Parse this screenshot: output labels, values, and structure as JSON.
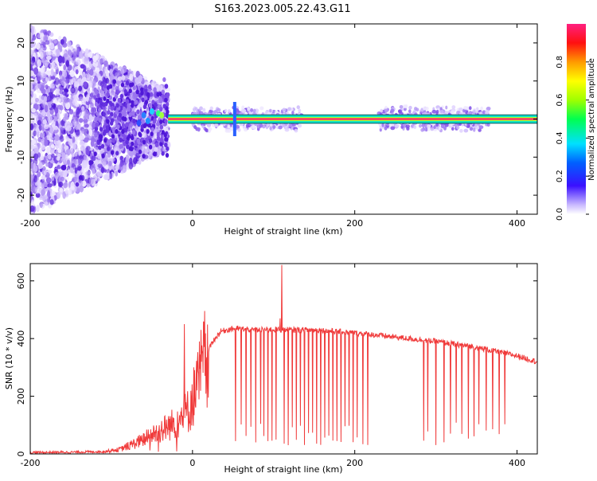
{
  "title": "S163.2023.005.22.43.G11",
  "colors": {
    "snr_line": "#f03a3a",
    "axis": "#000000",
    "carrier_core": "#ff2a6a",
    "carrier_edge": "#00e0d0",
    "scatter_low": "#d8c8f8",
    "scatter_high": "#5a18e0"
  },
  "chart_data": [
    {
      "type": "heatmap",
      "xlabel": "Height of straight line (km)",
      "ylabel": "Frequency (Hz)",
      "xlim": [
        -200,
        425
      ],
      "ylim": [
        -25,
        25
      ],
      "x_ticks": [
        {
          "value": -200,
          "label": "-200"
        },
        {
          "value": 0,
          "label": "0"
        },
        {
          "value": 200,
          "label": "200"
        },
        {
          "value": 400,
          "label": "400"
        }
      ],
      "y_ticks": [
        {
          "value": -20,
          "label": "-20"
        },
        {
          "value": -10,
          "label": "-10"
        },
        {
          "value": 0,
          "label": "0"
        },
        {
          "value": 10,
          "label": "10"
        },
        {
          "value": 20,
          "label": "20"
        }
      ],
      "colorbar": {
        "label": "Normalized spectral amplitude",
        "range": [
          0,
          1
        ],
        "ticks": [
          {
            "value": 0.0,
            "label": "0.0"
          },
          {
            "value": 0.2,
            "label": "0.2"
          },
          {
            "value": 0.4,
            "label": "0.4"
          },
          {
            "value": 0.6,
            "label": "0.6"
          },
          {
            "value": 0.8,
            "label": "0.8"
          }
        ]
      },
      "features": {
        "noise_region_x": [
          -200,
          -30
        ],
        "carrier_start_x": -30,
        "carrier_end_x": 425,
        "carrier_freq": 0,
        "carrier_halfwidth_hz": 1,
        "noisy_segments_x": [
          [
            0,
            135
          ],
          [
            230,
            365
          ]
        ],
        "spike_x": 52
      }
    },
    {
      "type": "line",
      "xlabel": "Height of straight line (km)",
      "ylabel": "SNR (10 * v/v)",
      "xlim": [
        -200,
        425
      ],
      "ylim": [
        0,
        660
      ],
      "x_ticks": [
        {
          "value": -200,
          "label": "-200"
        },
        {
          "value": 0,
          "label": "0"
        },
        {
          "value": 200,
          "label": "200"
        },
        {
          "value": 400,
          "label": "400"
        }
      ],
      "y_ticks": [
        {
          "value": 0,
          "label": "0"
        },
        {
          "value": 200,
          "label": "200"
        },
        {
          "value": 400,
          "label": "400"
        },
        {
          "value": 600,
          "label": "600"
        }
      ],
      "series": [
        {
          "x": [
            -200,
            -150,
            -110,
            -90,
            -60,
            -40,
            -20,
            -5,
            5,
            15,
            25,
            35,
            50,
            80,
            100,
            110,
            150,
            200,
            250,
            300,
            350,
            400,
            425
          ],
          "values": [
            5,
            6,
            8,
            15,
            50,
            80,
            110,
            150,
            230,
            330,
            390,
            425,
            435,
            430,
            432,
            430,
            430,
            420,
            405,
            390,
            370,
            340,
            320
          ]
        }
      ],
      "dropout_x": [
        53,
        60,
        66,
        72,
        78,
        84,
        88,
        93,
        98,
        103,
        108,
        113,
        118,
        123,
        128,
        133,
        138,
        143,
        148,
        153,
        158,
        163,
        168,
        173,
        178,
        183,
        188,
        193,
        198,
        203,
        210,
        216,
        285,
        290,
        300,
        310,
        318,
        325,
        332,
        340,
        347,
        353,
        362,
        370,
        378,
        385
      ],
      "spikes": [
        {
          "x": -10,
          "value": 450
        },
        {
          "x": 110,
          "value": 655
        },
        {
          "x": 108,
          "value": 470
        }
      ]
    }
  ]
}
